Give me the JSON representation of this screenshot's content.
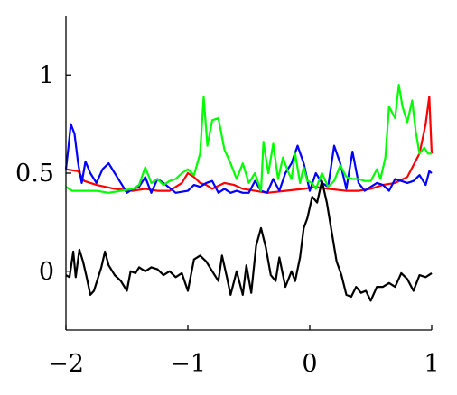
{
  "chart_data": {
    "type": "line",
    "title": "",
    "xlabel": "",
    "ylabel": "",
    "xlim": [
      -2,
      1
    ],
    "ylim": [
      -0.3,
      1.3
    ],
    "grid": false,
    "legend": "none",
    "x_ticks": [
      -2,
      -1,
      0,
      1
    ],
    "x_tick_labels": [
      "−2",
      "−1",
      "0",
      "1"
    ],
    "y_ticks": [
      0,
      0.5,
      1
    ],
    "y_tick_labels": [
      "0",
      "0.5",
      "1"
    ],
    "series": [
      {
        "color": "#ff0000",
        "points": [
          [
            -2,
            0.52
          ],
          [
            -1.9,
            0.51
          ],
          [
            -1.85,
            0.46
          ],
          [
            -1.75,
            0.44
          ],
          [
            -1.6,
            0.42
          ],
          [
            -1.45,
            0.41
          ],
          [
            -1.35,
            0.42
          ],
          [
            -1.25,
            0.41
          ],
          [
            -1.15,
            0.41
          ],
          [
            -1.05,
            0.45
          ],
          [
            -1.0,
            0.5
          ],
          [
            -0.95,
            0.48
          ],
          [
            -0.9,
            0.45
          ],
          [
            -0.85,
            0.44
          ],
          [
            -0.8,
            0.42
          ],
          [
            -0.7,
            0.45
          ],
          [
            -0.62,
            0.44
          ],
          [
            -0.55,
            0.42
          ],
          [
            -0.45,
            0.41
          ],
          [
            -0.35,
            0.4
          ],
          [
            -0.2,
            0.41
          ],
          [
            -0.05,
            0.42
          ],
          [
            0.05,
            0.43
          ],
          [
            0.15,
            0.42
          ],
          [
            0.3,
            0.41
          ],
          [
            0.4,
            0.41
          ],
          [
            0.5,
            0.42
          ],
          [
            0.6,
            0.44
          ],
          [
            0.7,
            0.45
          ],
          [
            0.8,
            0.48
          ],
          [
            0.9,
            0.6
          ],
          [
            0.95,
            0.75
          ],
          [
            0.98,
            0.89
          ],
          [
            1.0,
            0.6
          ]
        ]
      },
      {
        "color": "#0000ff",
        "points": [
          [
            -2,
            0.52
          ],
          [
            -1.98,
            0.63
          ],
          [
            -1.96,
            0.75
          ],
          [
            -1.93,
            0.7
          ],
          [
            -1.9,
            0.55
          ],
          [
            -1.87,
            0.45
          ],
          [
            -1.84,
            0.56
          ],
          [
            -1.8,
            0.5
          ],
          [
            -1.75,
            0.45
          ],
          [
            -1.7,
            0.52
          ],
          [
            -1.65,
            0.55
          ],
          [
            -1.6,
            0.5
          ],
          [
            -1.55,
            0.45
          ],
          [
            -1.5,
            0.4
          ],
          [
            -1.45,
            0.42
          ],
          [
            -1.4,
            0.43
          ],
          [
            -1.35,
            0.48
          ],
          [
            -1.3,
            0.4
          ],
          [
            -1.25,
            0.47
          ],
          [
            -1.2,
            0.45
          ],
          [
            -1.1,
            0.4
          ],
          [
            -1.0,
            0.41
          ],
          [
            -0.95,
            0.44
          ],
          [
            -0.9,
            0.43
          ],
          [
            -0.85,
            0.45
          ],
          [
            -0.8,
            0.46
          ],
          [
            -0.75,
            0.4
          ],
          [
            -0.7,
            0.42
          ],
          [
            -0.65,
            0.4
          ],
          [
            -0.6,
            0.41
          ],
          [
            -0.55,
            0.4
          ],
          [
            -0.5,
            0.4
          ],
          [
            -0.45,
            0.46
          ],
          [
            -0.4,
            0.41
          ],
          [
            -0.35,
            0.4
          ],
          [
            -0.3,
            0.47
          ],
          [
            -0.25,
            0.41
          ],
          [
            -0.2,
            0.5
          ],
          [
            -0.15,
            0.55
          ],
          [
            -0.1,
            0.64
          ],
          [
            -0.05,
            0.55
          ],
          [
            0.0,
            0.41
          ],
          [
            0.05,
            0.5
          ],
          [
            0.1,
            0.45
          ],
          [
            0.15,
            0.43
          ],
          [
            0.2,
            0.64
          ],
          [
            0.25,
            0.55
          ],
          [
            0.3,
            0.42
          ],
          [
            0.35,
            0.61
          ],
          [
            0.4,
            0.45
          ],
          [
            0.45,
            0.41
          ],
          [
            0.5,
            0.43
          ],
          [
            0.55,
            0.45
          ],
          [
            0.6,
            0.44
          ],
          [
            0.65,
            0.41
          ],
          [
            0.7,
            0.47
          ],
          [
            0.75,
            0.46
          ],
          [
            0.8,
            0.45
          ],
          [
            0.85,
            0.46
          ],
          [
            0.9,
            0.49
          ],
          [
            0.95,
            0.44
          ],
          [
            0.98,
            0.51
          ],
          [
            1.0,
            0.5
          ]
        ]
      },
      {
        "color": "#00ff00",
        "points": [
          [
            -2,
            0.43
          ],
          [
            -1.95,
            0.41
          ],
          [
            -1.85,
            0.41
          ],
          [
            -1.75,
            0.41
          ],
          [
            -1.65,
            0.4
          ],
          [
            -1.55,
            0.41
          ],
          [
            -1.45,
            0.42
          ],
          [
            -1.4,
            0.44
          ],
          [
            -1.35,
            0.53
          ],
          [
            -1.3,
            0.45
          ],
          [
            -1.25,
            0.47
          ],
          [
            -1.2,
            0.44
          ],
          [
            -1.15,
            0.46
          ],
          [
            -1.1,
            0.47
          ],
          [
            -1.05,
            0.5
          ],
          [
            -1.0,
            0.52
          ],
          [
            -0.95,
            0.49
          ],
          [
            -0.9,
            0.6
          ],
          [
            -0.87,
            0.89
          ],
          [
            -0.84,
            0.64
          ],
          [
            -0.8,
            0.77
          ],
          [
            -0.75,
            0.78
          ],
          [
            -0.7,
            0.62
          ],
          [
            -0.65,
            0.55
          ],
          [
            -0.6,
            0.47
          ],
          [
            -0.55,
            0.55
          ],
          [
            -0.5,
            0.45
          ],
          [
            -0.45,
            0.5
          ],
          [
            -0.4,
            0.41
          ],
          [
            -0.38,
            0.66
          ],
          [
            -0.34,
            0.5
          ],
          [
            -0.3,
            0.65
          ],
          [
            -0.26,
            0.47
          ],
          [
            -0.22,
            0.58
          ],
          [
            -0.18,
            0.51
          ],
          [
            -0.15,
            0.47
          ],
          [
            -0.12,
            0.6
          ],
          [
            -0.08,
            0.45
          ],
          [
            -0.05,
            0.53
          ],
          [
            -0.02,
            0.46
          ],
          [
            0.02,
            0.45
          ],
          [
            0.05,
            0.42
          ],
          [
            0.1,
            0.5
          ],
          [
            0.15,
            0.43
          ],
          [
            0.2,
            0.46
          ],
          [
            0.25,
            0.54
          ],
          [
            0.3,
            0.48
          ],
          [
            0.35,
            0.47
          ],
          [
            0.4,
            0.47
          ],
          [
            0.45,
            0.46
          ],
          [
            0.5,
            0.46
          ],
          [
            0.55,
            0.52
          ],
          [
            0.58,
            0.47
          ],
          [
            0.62,
            0.58
          ],
          [
            0.65,
            0.84
          ],
          [
            0.7,
            0.78
          ],
          [
            0.73,
            0.95
          ],
          [
            0.76,
            0.84
          ],
          [
            0.8,
            0.76
          ],
          [
            0.84,
            0.87
          ],
          [
            0.87,
            0.71
          ],
          [
            0.9,
            0.6
          ],
          [
            0.94,
            0.63
          ],
          [
            0.97,
            0.6
          ],
          [
            1.0,
            0.6
          ]
        ]
      },
      {
        "color": "#000000",
        "points": [
          [
            -2,
            -0.02
          ],
          [
            -1.97,
            -0.03
          ],
          [
            -1.94,
            0.1
          ],
          [
            -1.92,
            -0.03
          ],
          [
            -1.89,
            0.11
          ],
          [
            -1.86,
            0.05
          ],
          [
            -1.83,
            -0.03
          ],
          [
            -1.8,
            -0.12
          ],
          [
            -1.77,
            -0.1
          ],
          [
            -1.74,
            -0.04
          ],
          [
            -1.71,
            0.02
          ],
          [
            -1.68,
            0.1
          ],
          [
            -1.65,
            0.03
          ],
          [
            -1.6,
            -0.02
          ],
          [
            -1.55,
            -0.05
          ],
          [
            -1.5,
            -0.1
          ],
          [
            -1.47,
            0.0
          ],
          [
            -1.43,
            -0.01
          ],
          [
            -1.4,
            0.02
          ],
          [
            -1.35,
            0.0
          ],
          [
            -1.3,
            0.02
          ],
          [
            -1.25,
            0.01
          ],
          [
            -1.2,
            -0.02
          ],
          [
            -1.15,
            0.0
          ],
          [
            -1.1,
            -0.03
          ],
          [
            -1.05,
            -0.01
          ],
          [
            -1.0,
            -0.1
          ],
          [
            -0.95,
            0.06
          ],
          [
            -0.9,
            0.08
          ],
          [
            -0.85,
            0.05
          ],
          [
            -0.8,
            0.0
          ],
          [
            -0.75,
            -0.05
          ],
          [
            -0.72,
            0.08
          ],
          [
            -0.68,
            -0.03
          ],
          [
            -0.65,
            -0.12
          ],
          [
            -0.6,
            0.0
          ],
          [
            -0.55,
            -0.12
          ],
          [
            -0.52,
            0.03
          ],
          [
            -0.48,
            -0.11
          ],
          [
            -0.44,
            0.13
          ],
          [
            -0.4,
            0.22
          ],
          [
            -0.36,
            0.12
          ],
          [
            -0.32,
            -0.02
          ],
          [
            -0.28,
            -0.05
          ],
          [
            -0.25,
            0.07
          ],
          [
            -0.2,
            -0.08
          ],
          [
            -0.15,
            0.0
          ],
          [
            -0.12,
            -0.05
          ],
          [
            -0.08,
            0.07
          ],
          [
            -0.05,
            0.22
          ],
          [
            -0.02,
            0.27
          ],
          [
            0.02,
            0.38
          ],
          [
            0.06,
            0.35
          ],
          [
            0.1,
            0.46
          ],
          [
            0.14,
            0.35
          ],
          [
            0.18,
            0.2
          ],
          [
            0.22,
            0.05
          ],
          [
            0.26,
            -0.02
          ],
          [
            0.3,
            -0.12
          ],
          [
            0.34,
            -0.13
          ],
          [
            0.38,
            -0.08
          ],
          [
            0.42,
            -0.11
          ],
          [
            0.46,
            -0.1
          ],
          [
            0.5,
            -0.15
          ],
          [
            0.55,
            -0.08
          ],
          [
            0.6,
            -0.08
          ],
          [
            0.65,
            -0.06
          ],
          [
            0.7,
            -0.08
          ],
          [
            0.75,
            -0.01
          ],
          [
            0.8,
            -0.04
          ],
          [
            0.85,
            -0.1
          ],
          [
            0.9,
            -0.02
          ],
          [
            0.95,
            -0.03
          ],
          [
            1.0,
            -0.01
          ]
        ]
      }
    ]
  }
}
